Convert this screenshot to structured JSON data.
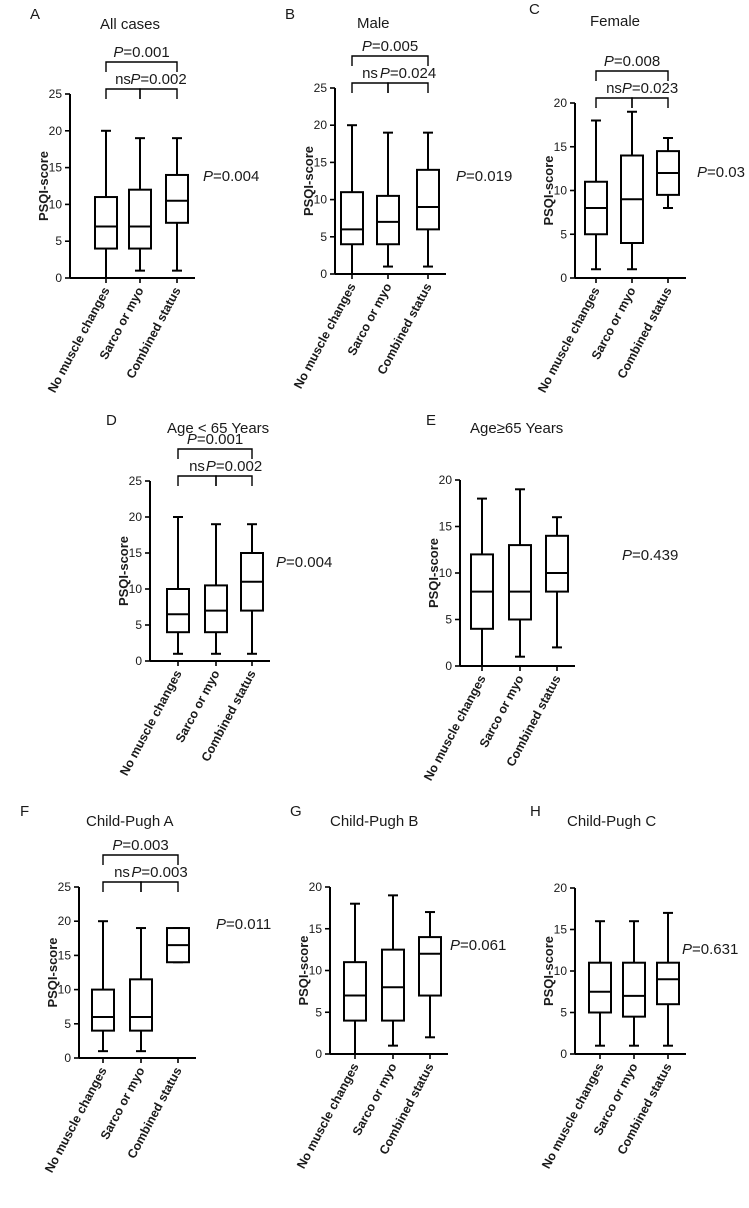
{
  "chart_data": [
    {
      "panel": "A",
      "title": "All cases",
      "type": "box",
      "ylabel": "PSQI-score",
      "categories": [
        "No muscle changes",
        "Sarco or myo",
        "Combined status"
      ],
      "ylim": [
        0,
        25
      ],
      "yticks": [
        0,
        5,
        10,
        15,
        20,
        25
      ],
      "boxes": [
        {
          "min": 0,
          "q1": 4,
          "median": 7,
          "q3": 11,
          "max": 20
        },
        {
          "min": 1,
          "q1": 4,
          "median": 7,
          "q3": 12,
          "max": 19
        },
        {
          "min": 1,
          "q1": 7.5,
          "median": 10.5,
          "q3": 14,
          "max": 19
        }
      ],
      "brackets": [
        {
          "from": 0,
          "to": 1,
          "label": "ns",
          "level": 1
        },
        {
          "from": 1,
          "to": 2,
          "label": "=0.002",
          "italic": "P",
          "level": 1
        },
        {
          "from": 0,
          "to": 2,
          "label": "=0.001",
          "italic": "P",
          "level": 2
        }
      ],
      "overall_p": {
        "italic": "P",
        "value": "=0.004"
      }
    },
    {
      "panel": "B",
      "title": "Male",
      "type": "box",
      "ylabel": "PSQI-score",
      "categories": [
        "No muscle changes",
        "Sarco or myo",
        "Combined status"
      ],
      "ylim": [
        0,
        25
      ],
      "yticks": [
        0,
        5,
        10,
        15,
        20,
        25
      ],
      "boxes": [
        {
          "min": 0,
          "q1": 4,
          "median": 6,
          "q3": 11,
          "max": 20
        },
        {
          "min": 1,
          "q1": 4,
          "median": 7,
          "q3": 10.5,
          "max": 19
        },
        {
          "min": 1,
          "q1": 6,
          "median": 9,
          "q3": 14,
          "max": 19
        }
      ],
      "brackets": [
        {
          "from": 0,
          "to": 1,
          "label": "ns",
          "level": 1
        },
        {
          "from": 1,
          "to": 2,
          "label": "=0.024",
          "italic": "P",
          "level": 1
        },
        {
          "from": 0,
          "to": 2,
          "label": "=0.005",
          "italic": "P",
          "level": 2
        }
      ],
      "overall_p": {
        "italic": "P",
        "value": "=0.019"
      }
    },
    {
      "panel": "C",
      "title": "Female",
      "type": "box",
      "ylabel": "PSQI-score",
      "categories": [
        "No muscle changes",
        "Sarco or myo",
        "Combined status"
      ],
      "ylim": [
        0,
        20
      ],
      "yticks": [
        0,
        5,
        10,
        15,
        20
      ],
      "boxes": [
        {
          "min": 1,
          "q1": 5,
          "median": 8,
          "q3": 11,
          "max": 18
        },
        {
          "min": 1,
          "q1": 4,
          "median": 9,
          "q3": 14,
          "max": 19
        },
        {
          "min": 8,
          "q1": 9.5,
          "median": 12,
          "q3": 14.5,
          "max": 16
        }
      ],
      "brackets": [
        {
          "from": 0,
          "to": 1,
          "label": "ns",
          "level": 1
        },
        {
          "from": 1,
          "to": 2,
          "label": "=0.023",
          "italic": "P",
          "level": 1
        },
        {
          "from": 0,
          "to": 2,
          "label": "=0.008",
          "italic": "P",
          "level": 2
        }
      ],
      "overall_p": {
        "italic": "P",
        "value": "=0.03"
      }
    },
    {
      "panel": "D",
      "title": "Age < 65 Years",
      "type": "box",
      "ylabel": "PSQI-score",
      "categories": [
        "No muscle changes",
        "Sarco or myo",
        "Combined status"
      ],
      "ylim": [
        0,
        25
      ],
      "yticks": [
        0,
        5,
        10,
        15,
        20,
        25
      ],
      "boxes": [
        {
          "min": 1,
          "q1": 4,
          "median": 6.5,
          "q3": 10,
          "max": 20
        },
        {
          "min": 1,
          "q1": 4,
          "median": 7,
          "q3": 10.5,
          "max": 19
        },
        {
          "min": 1,
          "q1": 7,
          "median": 11,
          "q3": 15,
          "max": 19
        }
      ],
      "brackets": [
        {
          "from": 0,
          "to": 1,
          "label": "ns",
          "level": 1
        },
        {
          "from": 1,
          "to": 2,
          "label": "=0.002",
          "italic": "P",
          "level": 1
        },
        {
          "from": 0,
          "to": 2,
          "label": "=0.001",
          "italic": "P",
          "level": 2
        }
      ],
      "overall_p": {
        "italic": "P",
        "value": "=0.004"
      }
    },
    {
      "panel": "E",
      "title": "Age≥65 Years",
      "type": "box",
      "ylabel": "PSQI-score",
      "categories": [
        "No muscle changes",
        "Sarco or myo",
        "Combined status"
      ],
      "ylim": [
        0,
        20
      ],
      "yticks": [
        0,
        5,
        10,
        15,
        20
      ],
      "boxes": [
        {
          "min": 0,
          "q1": 4,
          "median": 8,
          "q3": 12,
          "max": 18
        },
        {
          "min": 1,
          "q1": 5,
          "median": 8,
          "q3": 13,
          "max": 19
        },
        {
          "min": 2,
          "q1": 8,
          "median": 10,
          "q3": 14,
          "max": 16
        }
      ],
      "brackets": [],
      "overall_p": {
        "italic": "P",
        "value": "=0.439"
      }
    },
    {
      "panel": "F",
      "title": "Child-Pugh A",
      "type": "box",
      "ylabel": "PSQI-score",
      "categories": [
        "No muscle changes",
        "Sarco or myo",
        "Combined status"
      ],
      "ylim": [
        0,
        25
      ],
      "yticks": [
        0,
        5,
        10,
        15,
        20,
        25
      ],
      "boxes": [
        {
          "min": 1,
          "q1": 4,
          "median": 6,
          "q3": 10,
          "max": 20
        },
        {
          "min": 1,
          "q1": 4,
          "median": 6,
          "q3": 11.5,
          "max": 19
        },
        {
          "min": 14,
          "q1": 14,
          "median": 16.5,
          "q3": 19,
          "max": 19
        }
      ],
      "brackets": [
        {
          "from": 0,
          "to": 1,
          "label": "ns",
          "level": 1
        },
        {
          "from": 1,
          "to": 2,
          "label": "=0.003",
          "italic": "P",
          "level": 1
        },
        {
          "from": 0,
          "to": 2,
          "label": "=0.003",
          "italic": "P",
          "level": 2
        }
      ],
      "overall_p": {
        "italic": "P",
        "value": "=0.011"
      }
    },
    {
      "panel": "G",
      "title": "Child-Pugh B",
      "type": "box",
      "ylabel": "PSQI-score",
      "categories": [
        "No muscle changes",
        "Sarco or myo",
        "Combined status"
      ],
      "ylim": [
        0,
        20
      ],
      "yticks": [
        0,
        5,
        10,
        15,
        20
      ],
      "boxes": [
        {
          "min": 0,
          "q1": 4,
          "median": 7,
          "q3": 11,
          "max": 18
        },
        {
          "min": 1,
          "q1": 4,
          "median": 8,
          "q3": 12.5,
          "max": 19
        },
        {
          "min": 2,
          "q1": 7,
          "median": 12,
          "q3": 14,
          "max": 17
        }
      ],
      "brackets": [],
      "overall_p": {
        "italic": "P",
        "value": "=0.061"
      }
    },
    {
      "panel": "H",
      "title": "Child-Pugh C",
      "type": "box",
      "ylabel": "PSQI-score",
      "categories": [
        "No muscle changes",
        "Sarco or myo",
        "Combined status"
      ],
      "ylim": [
        0,
        20
      ],
      "yticks": [
        0,
        5,
        10,
        15,
        20
      ],
      "boxes": [
        {
          "min": 1,
          "q1": 5,
          "median": 7.5,
          "q3": 11,
          "max": 16
        },
        {
          "min": 1,
          "q1": 4.5,
          "median": 7,
          "q3": 11,
          "max": 16
        },
        {
          "min": 1,
          "q1": 6,
          "median": 9,
          "q3": 11,
          "max": 17
        }
      ],
      "brackets": [],
      "overall_p": {
        "italic": "P",
        "value": "=0.631"
      }
    }
  ]
}
